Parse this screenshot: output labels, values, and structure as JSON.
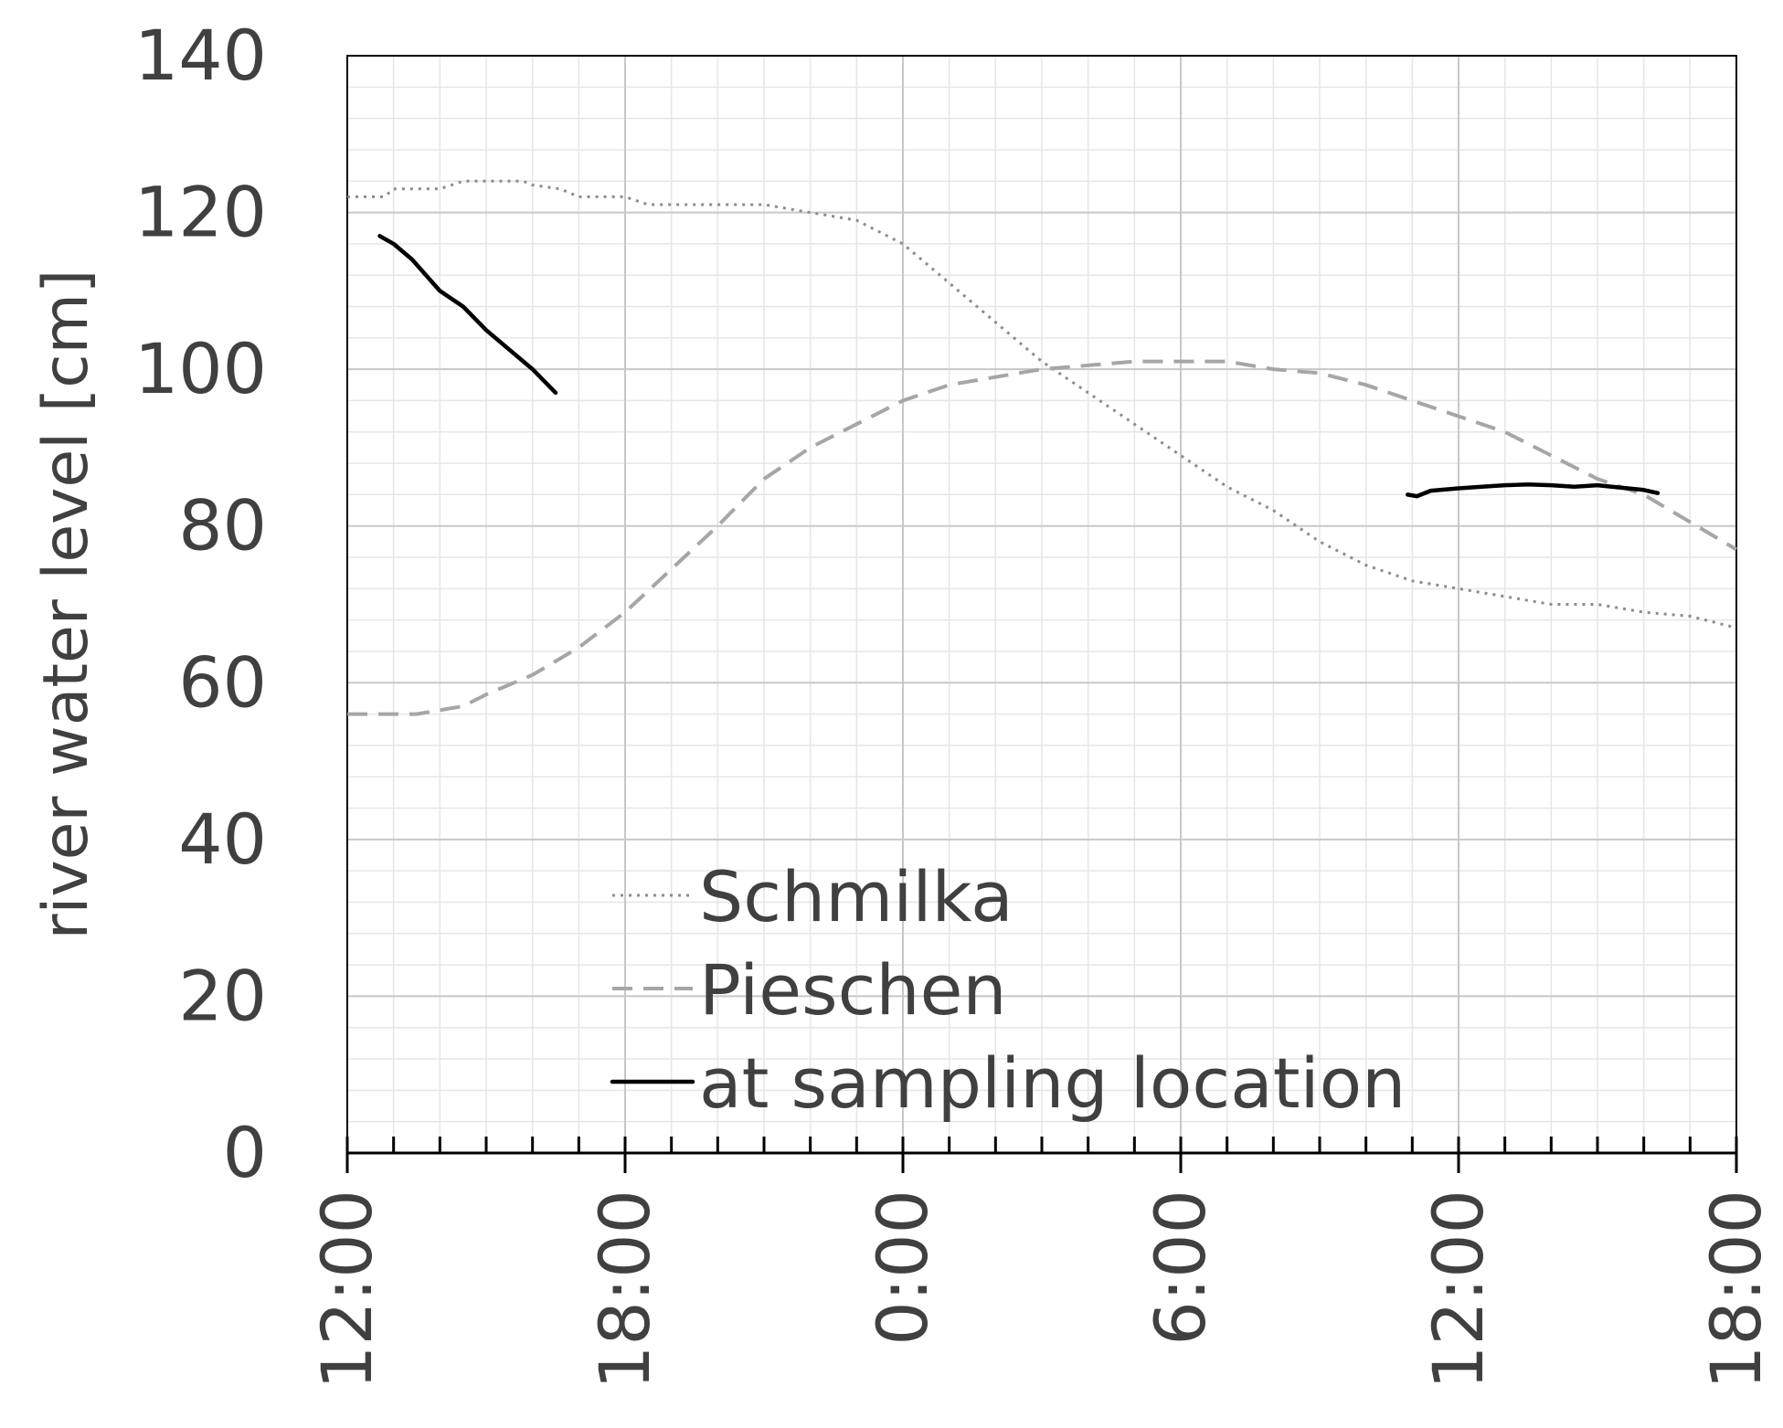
{
  "chart_data": {
    "type": "line",
    "title": "",
    "xlabel": "",
    "ylabel": "river water level [cm]",
    "xlim": [
      0,
      30
    ],
    "ylim": [
      0,
      140
    ],
    "x_ticks": [
      {
        "x": 0,
        "label": "12:00"
      },
      {
        "x": 6,
        "label": "18:00"
      },
      {
        "x": 12,
        "label": "0:00"
      },
      {
        "x": 18,
        "label": "6:00"
      },
      {
        "x": 24,
        "label": "12:00"
      },
      {
        "x": 30,
        "label": "18:00"
      }
    ],
    "y_ticks": [
      0,
      20,
      40,
      60,
      80,
      100,
      120,
      140
    ],
    "grid": true,
    "legend_position": "bottom-center",
    "series": [
      {
        "name": "Schmilka",
        "style": "dotted",
        "color": "#8c8c8c",
        "points": [
          [
            0,
            122
          ],
          [
            0.8,
            122
          ],
          [
            1,
            123
          ],
          [
            2,
            123
          ],
          [
            2.5,
            124
          ],
          [
            3,
            124
          ],
          [
            3.8,
            124
          ],
          [
            4,
            123.5
          ],
          [
            4.6,
            123
          ],
          [
            5,
            122
          ],
          [
            6,
            122
          ],
          [
            6.5,
            121
          ],
          [
            7,
            121
          ],
          [
            8,
            121
          ],
          [
            9,
            121
          ],
          [
            10,
            120
          ],
          [
            11,
            119
          ],
          [
            12,
            116
          ],
          [
            13,
            111
          ],
          [
            14,
            106
          ],
          [
            15,
            101
          ],
          [
            16,
            97
          ],
          [
            17,
            93
          ],
          [
            18,
            89
          ],
          [
            19,
            85
          ],
          [
            20,
            82
          ],
          [
            21,
            78
          ],
          [
            22,
            75
          ],
          [
            23,
            73
          ],
          [
            24,
            72
          ],
          [
            25,
            71
          ],
          [
            26,
            70
          ],
          [
            27,
            70
          ],
          [
            28,
            69
          ],
          [
            29,
            68.5
          ],
          [
            30,
            67
          ]
        ]
      },
      {
        "name": "Pieschen",
        "style": "dashed",
        "color": "#a6a6a6",
        "points": [
          [
            0,
            56
          ],
          [
            1,
            56
          ],
          [
            1.5,
            56
          ],
          [
            2,
            56.5
          ],
          [
            2.5,
            57
          ],
          [
            3,
            58.5
          ],
          [
            4,
            61
          ],
          [
            5,
            64.5
          ],
          [
            6,
            69
          ],
          [
            7,
            74.5
          ],
          [
            8,
            80
          ],
          [
            9,
            86
          ],
          [
            10,
            90
          ],
          [
            11,
            93
          ],
          [
            12,
            96
          ],
          [
            13,
            98
          ],
          [
            14,
            99
          ],
          [
            15,
            100
          ],
          [
            16,
            100.5
          ],
          [
            17,
            101
          ],
          [
            18,
            101
          ],
          [
            19,
            101
          ],
          [
            20,
            100
          ],
          [
            21,
            99.5
          ],
          [
            22,
            98
          ],
          [
            23,
            96
          ],
          [
            24,
            94
          ],
          [
            25,
            92
          ],
          [
            26,
            89
          ],
          [
            27,
            86
          ],
          [
            28,
            84
          ],
          [
            29,
            80.5
          ],
          [
            30,
            77
          ]
        ]
      },
      {
        "name": "at sampling location",
        "style": "solid",
        "color": "#000000",
        "segments": [
          [
            [
              0.7,
              117
            ],
            [
              1,
              116
            ],
            [
              1.4,
              114
            ],
            [
              2,
              110
            ],
            [
              2.5,
              108
            ],
            [
              3,
              105
            ],
            [
              3.5,
              102.5
            ],
            [
              4,
              100
            ],
            [
              4.5,
              97
            ]
          ],
          [
            [
              22.9,
              84
            ],
            [
              23.1,
              83.8
            ],
            [
              23.4,
              84.5
            ],
            [
              24,
              84.8
            ],
            [
              24.5,
              85
            ],
            [
              25,
              85.2
            ],
            [
              25.5,
              85.3
            ],
            [
              26,
              85.2
            ],
            [
              26.5,
              85
            ],
            [
              27,
              85.2
            ],
            [
              27.5,
              84.9
            ],
            [
              28,
              84.6
            ],
            [
              28.3,
              84.2
            ]
          ]
        ]
      }
    ]
  }
}
